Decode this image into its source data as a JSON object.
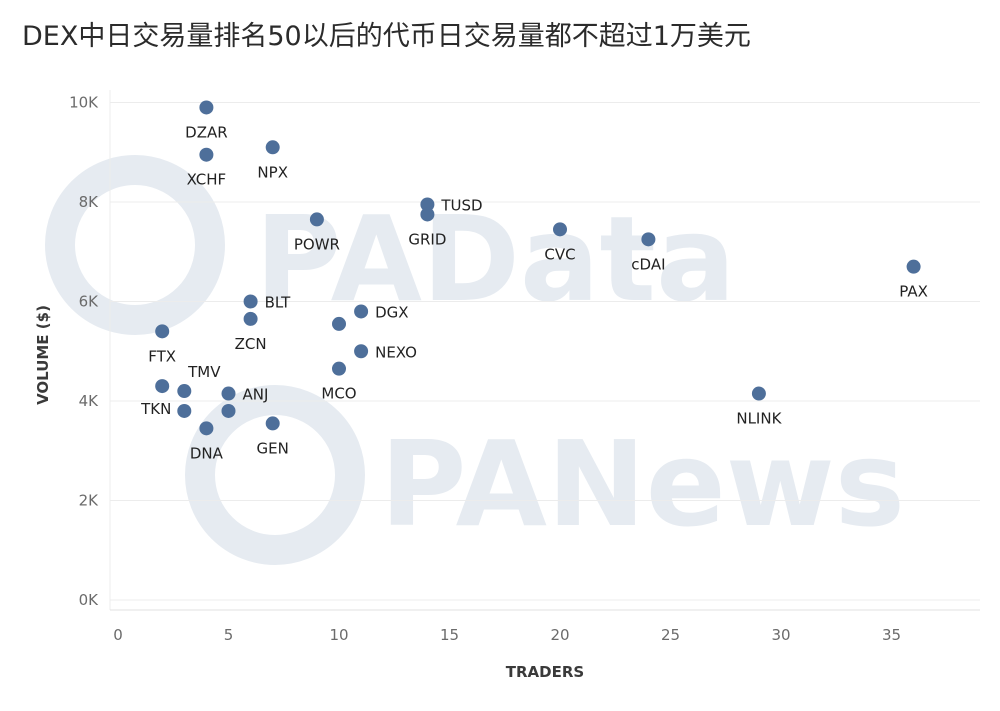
{
  "title": "DEX中日交易量排名50以后的代币日交易量都不超过1万美元",
  "watermarks": [
    "PAData",
    "PANews"
  ],
  "chart_data": {
    "type": "scatter",
    "xlabel": "TRADERS",
    "ylabel": "VOLUME ($)",
    "xlim": [
      0,
      39
    ],
    "ylim": [
      0,
      10000
    ],
    "x_ticks": [
      "0",
      "5",
      "10",
      "15",
      "20",
      "25",
      "30",
      "35"
    ],
    "y_ticks": [
      "0K",
      "2K",
      "4K",
      "6K",
      "8K",
      "10K"
    ],
    "point_color": "#4e6f9a",
    "grid": true,
    "points": [
      {
        "label": "DZAR",
        "x": 4,
        "y": 9900,
        "pos": "below"
      },
      {
        "label": "XCHF",
        "x": 4,
        "y": 8950,
        "pos": "below"
      },
      {
        "label": "NPX",
        "x": 7,
        "y": 9100,
        "pos": "below"
      },
      {
        "label": "TUSD",
        "x": 14,
        "y": 7950,
        "pos": "right"
      },
      {
        "label": "GRID",
        "x": 14,
        "y": 7750,
        "pos": "below"
      },
      {
        "label": "POWR",
        "x": 9,
        "y": 7650,
        "pos": "below"
      },
      {
        "label": "CVC",
        "x": 20,
        "y": 7450,
        "pos": "below"
      },
      {
        "label": "cDAI",
        "x": 24,
        "y": 7250,
        "pos": "below"
      },
      {
        "label": "PAX",
        "x": 36,
        "y": 6700,
        "pos": "below"
      },
      {
        "label": "BLT",
        "x": 6,
        "y": 6000,
        "pos": "right"
      },
      {
        "label": "ZCN",
        "x": 6,
        "y": 5650,
        "pos": "below"
      },
      {
        "label": "FTX",
        "x": 2,
        "y": 5400,
        "pos": "below"
      },
      {
        "label": "DGX",
        "x": 11,
        "y": 5800,
        "pos": "right"
      },
      {
        "label": "MCO_hidden",
        "x": 10,
        "y": 5550,
        "pos": "none"
      },
      {
        "label": "NEXO",
        "x": 11,
        "y": 5000,
        "pos": "right"
      },
      {
        "label": "MCO",
        "x": 10,
        "y": 4650,
        "pos": "below"
      },
      {
        "label": "TMV",
        "x": 3,
        "y": 4200,
        "pos": "above"
      },
      {
        "label": "TKN",
        "x": 2,
        "y": 4300,
        "pos": "belowleft"
      },
      {
        "label": "TKN_hidden",
        "x": 3,
        "y": 3800,
        "pos": "none"
      },
      {
        "label": "ANJ",
        "x": 5,
        "y": 4150,
        "pos": "right"
      },
      {
        "label": "ANJ_hidden",
        "x": 5,
        "y": 3800,
        "pos": "none"
      },
      {
        "label": "DNA",
        "x": 4,
        "y": 3450,
        "pos": "below"
      },
      {
        "label": "GEN",
        "x": 7,
        "y": 3550,
        "pos": "below"
      },
      {
        "label": "NLINK",
        "x": 29,
        "y": 4150,
        "pos": "below"
      }
    ]
  }
}
